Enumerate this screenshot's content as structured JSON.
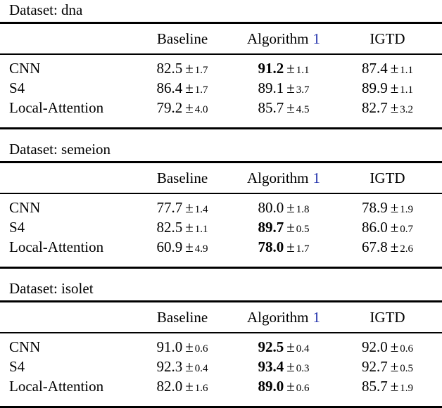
{
  "page": {
    "background_color": "#ffffff",
    "text_color": "#000000",
    "link_color": "#2434ad",
    "plus_minus_symbol": "±"
  },
  "tables": [
    {
      "dataset_label": "Dataset: dna",
      "headers": {
        "baseline": "Baseline",
        "algorithm_text": "Algorithm",
        "algorithm_ref": "1",
        "igtd": "IGTD"
      },
      "rows": [
        {
          "model": "CNN",
          "cells": [
            {
              "value": "82.5",
              "err": "1.7",
              "bold": false
            },
            {
              "value": "91.2",
              "err": "1.1",
              "bold": true
            },
            {
              "value": "87.4",
              "err": "1.1",
              "bold": false
            }
          ]
        },
        {
          "model": "S4",
          "cells": [
            {
              "value": "86.4",
              "err": "1.7",
              "bold": false
            },
            {
              "value": "89.1",
              "err": "3.7",
              "bold": false
            },
            {
              "value": "89.9",
              "err": "1.1",
              "bold": false
            }
          ]
        },
        {
          "model": "Local-Attention",
          "cells": [
            {
              "value": "79.2",
              "err": "4.0",
              "bold": false
            },
            {
              "value": "85.7",
              "err": "4.5",
              "bold": false
            },
            {
              "value": "82.7",
              "err": "3.2",
              "bold": false
            }
          ]
        }
      ]
    },
    {
      "dataset_label": "Dataset: semeion",
      "headers": {
        "baseline": "Baseline",
        "algorithm_text": "Algorithm",
        "algorithm_ref": "1",
        "igtd": "IGTD"
      },
      "rows": [
        {
          "model": "CNN",
          "cells": [
            {
              "value": "77.7",
              "err": "1.4",
              "bold": false
            },
            {
              "value": "80.0",
              "err": "1.8",
              "bold": false
            },
            {
              "value": "78.9",
              "err": "1.9",
              "bold": false
            }
          ]
        },
        {
          "model": "S4",
          "cells": [
            {
              "value": "82.5",
              "err": "1.1",
              "bold": false
            },
            {
              "value": "89.7",
              "err": "0.5",
              "bold": true
            },
            {
              "value": "86.0",
              "err": "0.7",
              "bold": false
            }
          ]
        },
        {
          "model": "Local-Attention",
          "cells": [
            {
              "value": "60.9",
              "err": "4.9",
              "bold": false
            },
            {
              "value": "78.0",
              "err": "1.7",
              "bold": true
            },
            {
              "value": "67.8",
              "err": "2.6",
              "bold": false
            }
          ]
        }
      ]
    },
    {
      "dataset_label": "Dataset: isolet",
      "headers": {
        "baseline": "Baseline",
        "algorithm_text": "Algorithm",
        "algorithm_ref": "1",
        "igtd": "IGTD"
      },
      "rows": [
        {
          "model": "CNN",
          "cells": [
            {
              "value": "91.0",
              "err": "0.6",
              "bold": false
            },
            {
              "value": "92.5",
              "err": "0.4",
              "bold": true
            },
            {
              "value": "92.0",
              "err": "0.6",
              "bold": false
            }
          ]
        },
        {
          "model": "S4",
          "cells": [
            {
              "value": "92.3",
              "err": "0.4",
              "bold": false
            },
            {
              "value": "93.4",
              "err": "0.3",
              "bold": true
            },
            {
              "value": "92.7",
              "err": "0.5",
              "bold": false
            }
          ]
        },
        {
          "model": "Local-Attention",
          "cells": [
            {
              "value": "82.0",
              "err": "1.6",
              "bold": false
            },
            {
              "value": "89.0",
              "err": "0.6",
              "bold": true
            },
            {
              "value": "85.7",
              "err": "1.9",
              "bold": false
            }
          ]
        }
      ]
    }
  ]
}
